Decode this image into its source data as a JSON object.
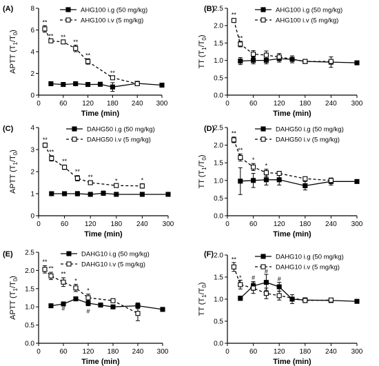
{
  "chart_data": [
    {
      "type": "line",
      "panel_label": "(A)",
      "xlabel": "Time (min)",
      "ylabel": "APTT (T",
      "ylabel_sub1": "1",
      "ylabel_mid": "/T",
      "ylabel_sub0": "0",
      "ylabel_end": ")",
      "xlim": [
        0,
        300
      ],
      "xticks": [
        0,
        60,
        120,
        180,
        240,
        300
      ],
      "ylim": [
        0,
        8
      ],
      "yticks": [
        0,
        2,
        4,
        6,
        8
      ],
      "legend": "top-right",
      "series": [
        {
          "name": "AHG100 i.g (50 mg/kg)",
          "style": "solid",
          "marker": "filled-square",
          "x": [
            30,
            60,
            90,
            120,
            150,
            180,
            240,
            300
          ],
          "y": [
            1.05,
            0.98,
            1.05,
            0.98,
            1.0,
            0.75,
            1.08,
            0.92
          ],
          "err": [
            0.05,
            0.05,
            0.05,
            0.05,
            0.05,
            0.4,
            0.1,
            0.05
          ]
        },
        {
          "name": "AHG100 i.v (5 mg/kg)",
          "style": "dashed",
          "marker": "open-square",
          "x": [
            15,
            30,
            60,
            90,
            120,
            180,
            240
          ],
          "y": [
            6.1,
            5.0,
            4.9,
            4.3,
            3.1,
            1.6,
            1.05
          ],
          "err": [
            0.3,
            0.15,
            0.15,
            0.3,
            0.25,
            0.15,
            0.1
          ]
        }
      ],
      "annotations": [
        {
          "text": "**",
          "x": 15,
          "y": 6.5
        },
        {
          "text": "**",
          "x": 30,
          "y": 5.25
        },
        {
          "text": "**",
          "x": 60,
          "y": 5.15
        },
        {
          "text": "**",
          "x": 90,
          "y": 4.7
        },
        {
          "text": "**",
          "x": 120,
          "y": 3.45
        },
        {
          "text": "**",
          "x": 180,
          "y": 1.85
        }
      ]
    },
    {
      "type": "line",
      "panel_label": "(B)",
      "xlabel": "Time (min)",
      "ylabel": "TT (T",
      "ylabel_sub1": "1",
      "ylabel_mid": "/T",
      "ylabel_sub0": "0",
      "ylabel_end": ")",
      "xlim": [
        0,
        300
      ],
      "xticks": [
        0,
        60,
        120,
        180,
        240,
        300
      ],
      "ylim": [
        0.0,
        2.5
      ],
      "yticks": [
        0.0,
        0.5,
        1.0,
        1.5,
        2.0,
        2.5
      ],
      "legend": "top-right",
      "series": [
        {
          "name": "AHG100 i.g (50 mg/kg)",
          "style": "solid",
          "marker": "filled-square",
          "x": [
            30,
            60,
            90,
            120,
            150,
            180,
            240,
            300
          ],
          "y": [
            0.98,
            1.0,
            1.0,
            1.05,
            1.03,
            0.97,
            0.95,
            0.93
          ],
          "err": [
            0.1,
            0.1,
            0.1,
            0.1,
            0.1,
            0.05,
            0.15,
            0.02
          ]
        },
        {
          "name": "AHG100 i.v (5 mg/kg)",
          "style": "dashed",
          "marker": "open-square",
          "x": [
            15,
            30,
            60,
            90,
            120,
            180,
            240
          ],
          "y": [
            2.15,
            1.47,
            1.18,
            1.15,
            1.1,
            0.97,
            0.97
          ],
          "err": [
            0.05,
            0.08,
            0.1,
            0.12,
            0.1,
            0.05,
            0.05
          ]
        }
      ],
      "annotations": [
        {
          "text": "**",
          "x": 15,
          "y": 2.25
        },
        {
          "text": "**",
          "x": 30,
          "y": 1.58
        }
      ]
    },
    {
      "type": "line",
      "panel_label": "(C)",
      "xlabel": "Time (min)",
      "ylabel": "APTT (T",
      "ylabel_sub1": "1",
      "ylabel_mid": "/T",
      "ylabel_sub0": "0",
      "ylabel_end": ")",
      "xlim": [
        0,
        300
      ],
      "xticks": [
        0,
        60,
        120,
        180,
        240,
        300
      ],
      "ylim": [
        0,
        4
      ],
      "yticks": [
        0,
        1,
        2,
        3,
        4
      ],
      "legend": "top-right",
      "series": [
        {
          "name": "DAHG50 i.g (50 mg/kg)",
          "style": "solid",
          "marker": "filled-square",
          "x": [
            30,
            60,
            90,
            120,
            150,
            180,
            240,
            300
          ],
          "y": [
            1.0,
            1.0,
            1.0,
            0.97,
            1.02,
            0.97,
            0.97,
            0.97
          ],
          "err": [
            0.08,
            0.08,
            0.1,
            0.05,
            0.1,
            0.08,
            0.08,
            0.05
          ]
        },
        {
          "name": "DAHG50 i.v (5 mg/kg)",
          "style": "dashed",
          "marker": "open-square",
          "x": [
            15,
            30,
            60,
            90,
            120,
            180,
            240
          ],
          "y": [
            3.2,
            2.6,
            2.2,
            1.7,
            1.5,
            1.37,
            1.35
          ],
          "err": [
            0.1,
            0.12,
            0.1,
            0.12,
            0.08,
            0.05,
            0.1
          ]
        }
      ],
      "annotations": [
        {
          "text": "**",
          "x": 15,
          "y": 3.35
        },
        {
          "text": "**",
          "x": 30,
          "y": 2.8
        },
        {
          "text": "**",
          "x": 60,
          "y": 2.38
        },
        {
          "text": "**",
          "x": 90,
          "y": 1.9
        },
        {
          "text": "**",
          "x": 120,
          "y": 1.65
        },
        {
          "text": "*",
          "x": 180,
          "y": 1.48
        },
        {
          "text": "*",
          "x": 240,
          "y": 1.52
        }
      ]
    },
    {
      "type": "line",
      "panel_label": "(D)",
      "xlabel": "Time (min)",
      "ylabel": "TT (T",
      "ylabel_sub1": "1",
      "ylabel_mid": "/T",
      "ylabel_sub0": "0",
      "ylabel_end": ")",
      "xlim": [
        0,
        300
      ],
      "xticks": [
        0,
        60,
        120,
        180,
        240,
        300
      ],
      "ylim": [
        0.0,
        2.5
      ],
      "yticks": [
        0.0,
        0.5,
        1.0,
        1.5,
        2.0,
        2.5
      ],
      "legend": "top-right",
      "series": [
        {
          "name": "DAHG50 i.g (50 mg/kg)",
          "style": "solid",
          "marker": "filled-square",
          "x": [
            30,
            60,
            90,
            120,
            180,
            240,
            300
          ],
          "y": [
            0.98,
            1.0,
            1.02,
            1.02,
            0.85,
            0.97,
            0.97
          ],
          "err": [
            0.38,
            0.2,
            0.15,
            0.15,
            0.12,
            0.1,
            0.02
          ]
        },
        {
          "name": "DAHG50 i.v (5 mg/kg)",
          "style": "dashed",
          "marker": "open-square",
          "x": [
            15,
            30,
            60,
            90,
            120,
            180,
            240
          ],
          "y": [
            2.15,
            1.65,
            1.38,
            1.22,
            1.2,
            1.05,
            1.0
          ],
          "err": [
            0.08,
            0.1,
            0.1,
            0.1,
            0.05,
            0.03,
            0.05
          ]
        }
      ],
      "annotations": [
        {
          "text": "**",
          "x": 15,
          "y": 2.28
        },
        {
          "text": "**",
          "x": 30,
          "y": 1.8
        },
        {
          "text": "*",
          "x": 60,
          "y": 1.52
        },
        {
          "text": "*",
          "x": 90,
          "y": 1.36
        }
      ]
    },
    {
      "type": "line",
      "panel_label": "(E)",
      "xlabel": "Time (min)",
      "ylabel": "APTT (T",
      "ylabel_sub1": "1",
      "ylabel_mid": "/T",
      "ylabel_sub0": "0",
      "ylabel_end": ")",
      "xlim": [
        0,
        300
      ],
      "xticks": [
        0,
        60,
        120,
        180,
        240,
        300
      ],
      "ylim": [
        0.0,
        2.5
      ],
      "yticks": [
        0.0,
        0.5,
        1.0,
        1.5,
        2.0,
        2.5
      ],
      "legend": "top-right",
      "series": [
        {
          "name": "DAHG10 i.g (50 mg/kg)",
          "style": "solid",
          "marker": "filled-square",
          "x": [
            30,
            60,
            90,
            120,
            150,
            180,
            240,
            300
          ],
          "y": [
            1.03,
            1.08,
            1.22,
            1.1,
            1.05,
            1.0,
            1.03,
            0.93
          ],
          "err": [
            0.05,
            0.05,
            0.05,
            0.07,
            0.05,
            0.05,
            0.08,
            0.05
          ]
        },
        {
          "name": "DAHG10 i.v (5 mg/kg)",
          "style": "dashed",
          "marker": "open-square",
          "x": [
            15,
            30,
            60,
            90,
            120,
            180,
            240
          ],
          "y": [
            2.03,
            1.85,
            1.68,
            1.52,
            1.25,
            1.17,
            0.82
          ],
          "err": [
            0.1,
            0.1,
            0.12,
            0.1,
            0.1,
            0.05,
            0.2
          ]
        }
      ],
      "annotations": [
        {
          "text": "**",
          "x": 15,
          "y": 2.18
        },
        {
          "text": "**",
          "x": 30,
          "y": 2.0
        },
        {
          "text": "**",
          "x": 60,
          "y": 1.85
        },
        {
          "text": "*",
          "x": 90,
          "y": 1.66
        },
        {
          "text": "*",
          "x": 120,
          "y": 1.39
        },
        {
          "text": "#",
          "x": 60,
          "y": 0.9
        },
        {
          "text": "#",
          "x": 120,
          "y": 0.82
        }
      ]
    },
    {
      "type": "line",
      "panel_label": "(F)",
      "xlabel": "Time (min)",
      "ylabel": "TT (T",
      "ylabel_sub1": "1",
      "ylabel_mid": "/T",
      "ylabel_sub0": "0",
      "ylabel_end": ")",
      "xlim": [
        0,
        300
      ],
      "xticks": [
        0,
        60,
        120,
        180,
        240,
        300
      ],
      "ylim": [
        0.0,
        2.0
      ],
      "yticks": [
        0.0,
        0.5,
        1.0,
        1.5,
        2.0
      ],
      "legend": "top-right",
      "series": [
        {
          "name": "DAHG10 i.g (50 mg/kg)",
          "style": "solid",
          "marker": "filled-square",
          "x": [
            30,
            60,
            90,
            120,
            150,
            180,
            240,
            300
          ],
          "y": [
            1.02,
            1.3,
            1.38,
            1.28,
            1.0,
            0.98,
            0.97,
            0.95
          ],
          "err": [
            0.05,
            0.1,
            0.18,
            0.1,
            0.1,
            0.05,
            0.03,
            0.02
          ]
        },
        {
          "name": "DAHG10 i.v (5 mg/kg)",
          "style": "dashed",
          "marker": "open-square",
          "x": [
            15,
            30,
            60,
            90,
            120,
            180,
            240
          ],
          "y": [
            1.73,
            1.33,
            1.25,
            1.13,
            1.08,
            0.97,
            0.98
          ],
          "err": [
            0.1,
            0.1,
            0.12,
            0.12,
            0.1,
            0.05,
            0.03
          ]
        }
      ],
      "annotations": [
        {
          "text": "**",
          "x": 15,
          "y": 1.85
        },
        {
          "text": "*",
          "x": 30,
          "y": 1.44
        },
        {
          "text": "#",
          "x": 60,
          "y": 1.44
        },
        {
          "text": "#",
          "x": 90,
          "y": 1.58
        },
        {
          "text": "#",
          "x": 120,
          "y": 1.41
        }
      ]
    }
  ]
}
